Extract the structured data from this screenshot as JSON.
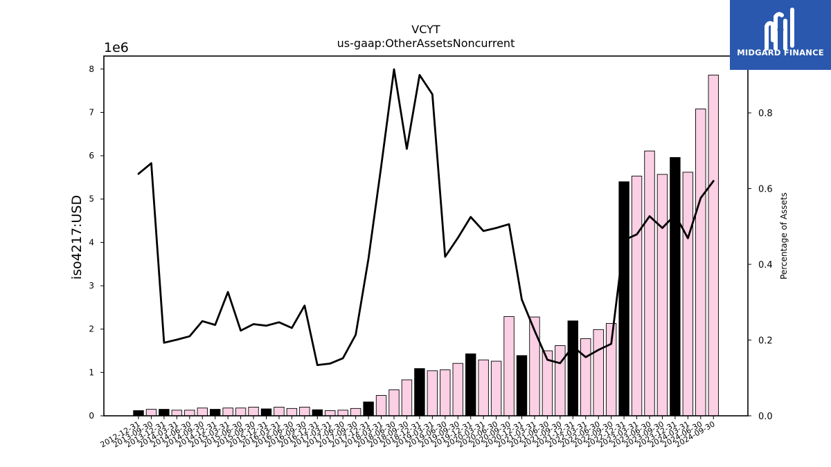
{
  "chart_data": {
    "type": "bar",
    "title": "VCYT",
    "subtitle": "us-gaap:OtherAssetsNoncurrent",
    "ylabel": "iso4217:USD",
    "y_offset_label": "1e6",
    "y2label": "Percentage of Assets",
    "ylim": [
      0,
      8300000
    ],
    "y2lim": [
      0,
      0.95
    ],
    "y_ticks": [
      "0",
      "1",
      "2",
      "3",
      "4",
      "5",
      "6",
      "7",
      "8"
    ],
    "y2_ticks": [
      "0.0",
      "0.2",
      "0.4",
      "0.6",
      "0.8"
    ],
    "grid": false,
    "categories": [
      "2012-12-31",
      "2013-09-30",
      "2013-12-31",
      "2014-03-31",
      "2014-06-30",
      "2014-09-30",
      "2014-12-31",
      "2015-03-31",
      "2015-06-30",
      "2015-09-30",
      "2015-12-31",
      "2016-03-31",
      "2016-06-30",
      "2016-09-30",
      "2016-12-31",
      "2017-03-31",
      "2017-06-30",
      "2017-09-30",
      "2017-12-31",
      "2018-03-31",
      "2018-06-30",
      "2018-09-30",
      "2018-12-31",
      "2019-03-31",
      "2019-06-30",
      "2019-09-30",
      "2019-12-31",
      "2020-03-31",
      "2020-06-30",
      "2020-09-30",
      "2020-12-31",
      "2021-03-31",
      "2021-06-30",
      "2021-09-30",
      "2021-12-31",
      "2022-03-31",
      "2022-06-30",
      "2022-09-30",
      "2022-12-31",
      "2023-03-31",
      "2023-06-30",
      "2023-09-30",
      "2023-12-31",
      "2024-03-31",
      "2024-06-30",
      "2024-09-30"
    ],
    "series": [
      {
        "kind": "bar",
        "values": [
          120000,
          150000,
          150000,
          130000,
          130000,
          180000,
          150000,
          180000,
          180000,
          200000,
          160000,
          200000,
          170000,
          200000,
          140000,
          120000,
          130000,
          170000,
          320000,
          470000,
          600000,
          830000,
          1090000,
          1040000,
          1060000,
          1210000,
          1430000,
          1290000,
          1260000,
          2290000,
          1390000,
          2280000,
          1500000,
          1620000,
          2190000,
          1780000,
          1990000,
          2130000,
          5400000,
          5530000,
          6110000,
          5570000,
          5960000,
          5620000,
          7080000,
          7860000
        ],
        "colors": [
          "#000000",
          "#fbcfe4",
          "#000000",
          "#fbcfe4",
          "#fbcfe4",
          "#fbcfe4",
          "#000000",
          "#fbcfe4",
          "#fbcfe4",
          "#fbcfe4",
          "#000000",
          "#fbcfe4",
          "#fbcfe4",
          "#fbcfe4",
          "#000000",
          "#fbcfe4",
          "#fbcfe4",
          "#fbcfe4",
          "#000000",
          "#fbcfe4",
          "#fbcfe4",
          "#fbcfe4",
          "#000000",
          "#fbcfe4",
          "#fbcfe4",
          "#fbcfe4",
          "#000000",
          "#fbcfe4",
          "#fbcfe4",
          "#fbcfe4",
          "#000000",
          "#fbcfe4",
          "#fbcfe4",
          "#fbcfe4",
          "#000000",
          "#fbcfe4",
          "#fbcfe4",
          "#fbcfe4",
          "#000000",
          "#fbcfe4",
          "#fbcfe4",
          "#fbcfe4",
          "#000000",
          "#fbcfe4",
          "#fbcfe4",
          "#fbcfe4"
        ]
      },
      {
        "kind": "line",
        "axis": "secondary",
        "color": "#000000",
        "values": [
          0.639,
          0.667,
          0.193,
          0.201,
          0.21,
          0.25,
          0.24,
          0.327,
          0.225,
          0.242,
          0.238,
          0.247,
          0.232,
          0.291,
          0.134,
          0.138,
          0.152,
          0.214,
          0.415,
          0.66,
          0.915,
          0.705,
          0.9,
          0.849,
          0.42,
          0.47,
          0.525,
          0.488,
          0.496,
          0.506,
          0.307,
          0.225,
          0.148,
          0.139,
          0.183,
          0.155,
          0.174,
          0.19,
          0.464,
          0.479,
          0.527,
          0.496,
          0.531,
          0.469,
          0.575,
          0.62
        ]
      }
    ]
  },
  "logo": {
    "text": "MIDGARD FINANCE"
  }
}
